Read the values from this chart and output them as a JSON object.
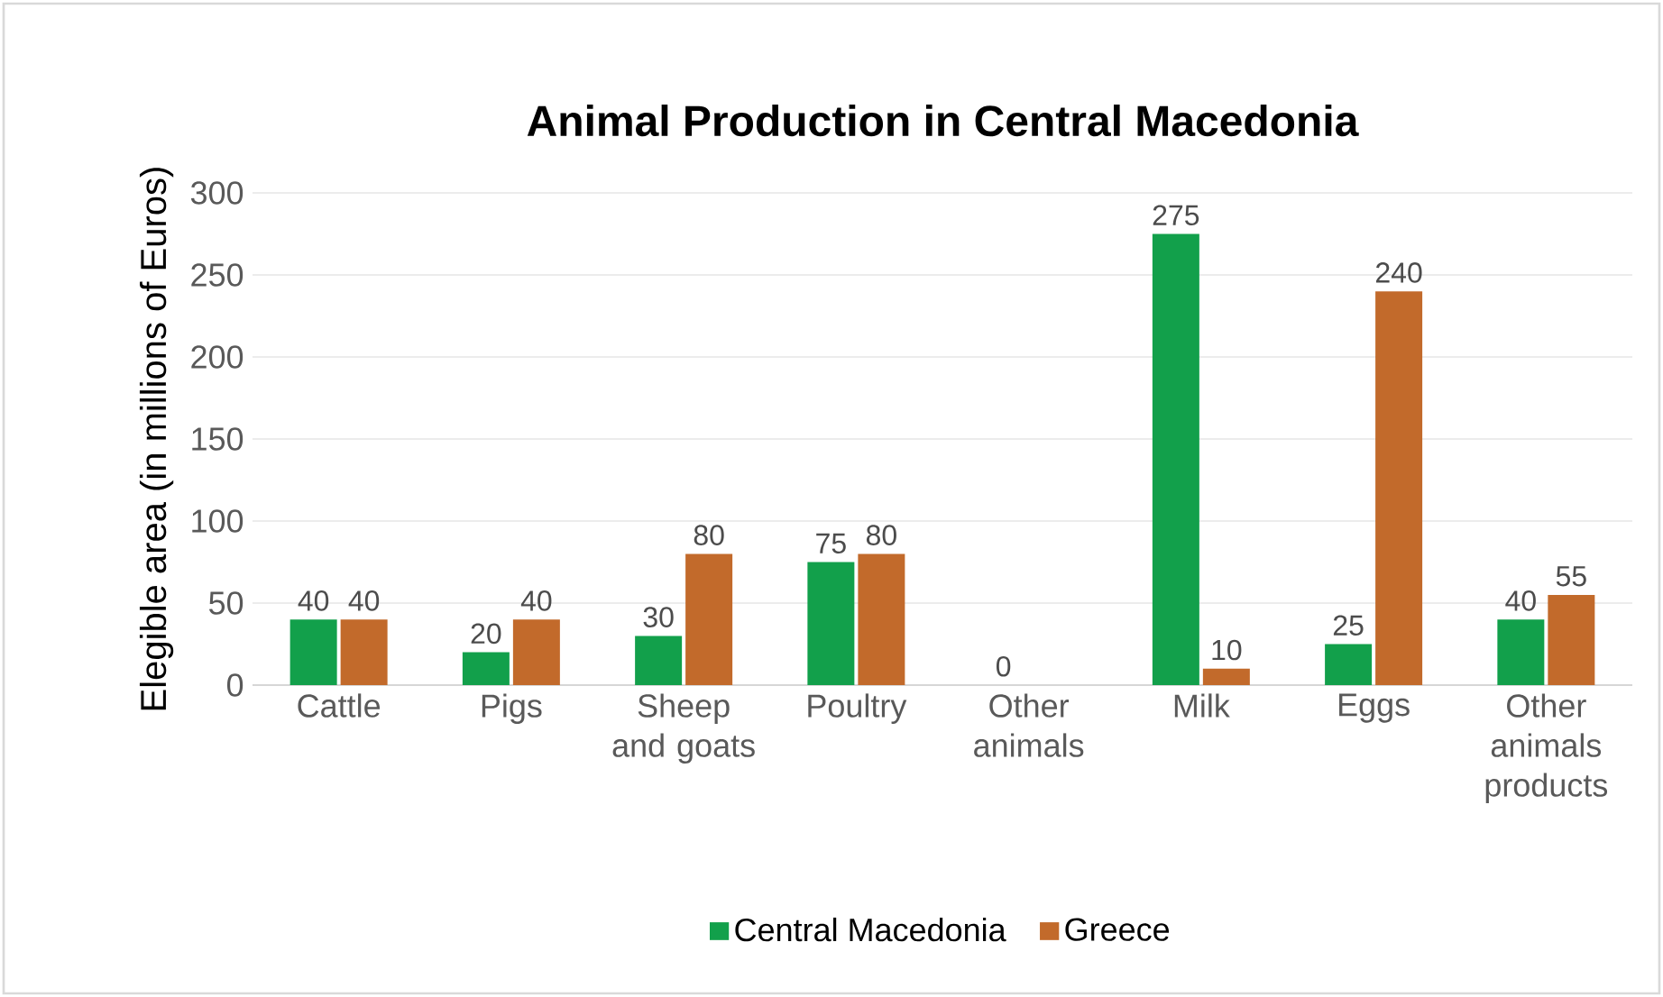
{
  "chart_data": {
    "type": "bar",
    "title": "Animal Production in Central Macedonia",
    "ylabel": "Elegible area (in millions of Euros)",
    "categories": [
      "Cattle",
      "Pigs",
      "Sheep and goats",
      "Poultry",
      "Other animals",
      "Milk",
      "Eggs",
      "Other animals products"
    ],
    "series": [
      {
        "name": "Central Macedonia",
        "color": "#12a04b",
        "values": [
          40,
          20,
          30,
          75,
          0,
          275,
          25,
          40
        ]
      },
      {
        "name": "Greece",
        "color": "#c26a2b",
        "values": [
          40,
          40,
          80,
          80,
          null,
          10,
          240,
          55
        ]
      }
    ],
    "ylim": [
      0,
      300
    ],
    "yticks": [
      0,
      50,
      100,
      150,
      200,
      250,
      300
    ],
    "grid": "y",
    "legend": "bottom",
    "data_labels": true
  }
}
